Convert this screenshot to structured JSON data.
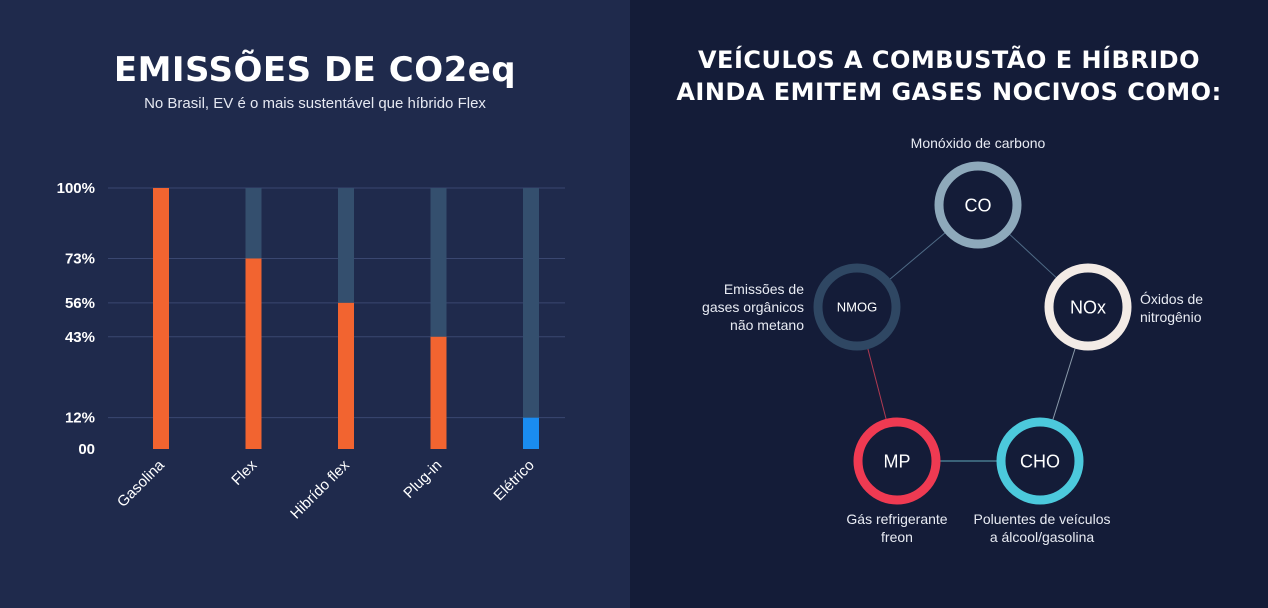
{
  "left_panel": {
    "title": "EMISSÕES DE CO2eq",
    "subtitle": "No Brasil, EV é o mais sustentável que híbrido Flex"
  },
  "chart_data": {
    "type": "bar",
    "categories": [
      "Gasolina",
      "Flex",
      "Hibrído flex",
      "Plug-in",
      "Elétrico"
    ],
    "values": [
      100,
      73,
      56,
      43,
      12
    ],
    "ytick_labels": [
      "100%",
      "73%",
      "56%",
      "43%",
      "12%",
      "00"
    ],
    "ytick_values": [
      100,
      73,
      56,
      43,
      12,
      0
    ],
    "ylim": [
      0,
      100
    ],
    "grid": true,
    "colors": {
      "bar": "#f26430",
      "bar_highlight": "#1a8cf0",
      "track": "#344f6e",
      "grid": "#3a4770"
    }
  },
  "right_panel": {
    "title_line1": "VEÍCULOS A COMBUSTÃO E HÍBRIDO",
    "title_line2": "AINDA EMITEM GASES NOCIVOS COMO:",
    "gases": [
      {
        "code": "CO",
        "label": [
          "Monóxido de carbono"
        ],
        "color": "#8ea9bb"
      },
      {
        "code": "NOx",
        "label": [
          "Óxidos de",
          "nitrogênio"
        ],
        "color": "#f3ebe6"
      },
      {
        "code": "CHO",
        "label": [
          "Poluentes de veículos",
          "a álcool/gasolina"
        ],
        "color": "#4cc9dc"
      },
      {
        "code": "MP",
        "label": [
          "Gás refrigerante",
          "freon"
        ],
        "color": "#ef3a52"
      },
      {
        "code": "NMOG",
        "label": [
          "Emissões de",
          "gases orgânicos",
          "não metano"
        ],
        "color": "#2f4763"
      }
    ]
  }
}
